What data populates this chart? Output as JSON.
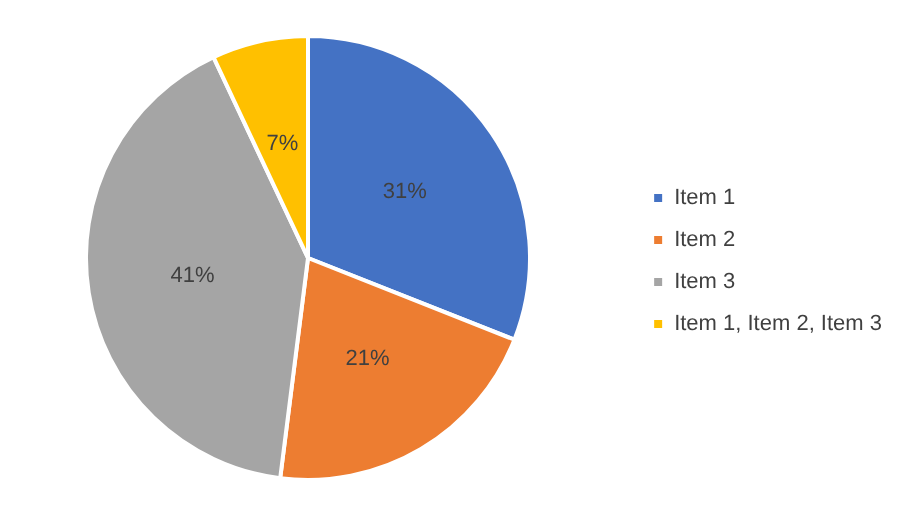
{
  "chart_data": {
    "type": "pie",
    "categories": [
      "Item 1",
      "Item 2",
      "Item 3",
      "Item 1, Item 2, Item 3"
    ],
    "values": [
      31,
      21,
      41,
      7
    ],
    "colors": [
      "#4472c4",
      "#ed7d31",
      "#a5a5a5",
      "#ffc000"
    ],
    "value_labels": [
      "31%",
      "21%",
      "41%",
      "7%"
    ],
    "legend": "right"
  }
}
